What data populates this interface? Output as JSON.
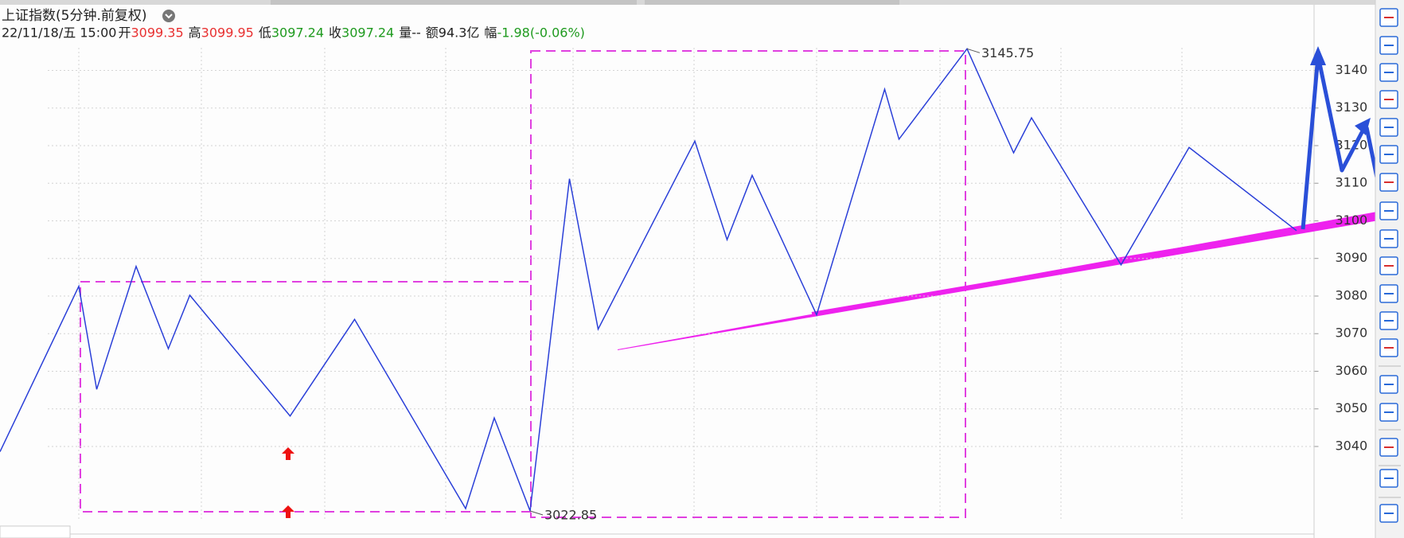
{
  "header": {
    "title": "上证指数(5分钟.前复权)",
    "datetime": "22/11/18/五 15:00",
    "quote": [
      {
        "label": "开",
        "value": "3099.35",
        "color": "#e83030"
      },
      {
        "label": "高",
        "value": "3099.95",
        "color": "#e83030"
      },
      {
        "label": "低",
        "value": "3097.24",
        "color": "#1e9a1e"
      },
      {
        "label": "收",
        "value": "3097.24",
        "color": "#1e9a1e"
      },
      {
        "label": "量",
        "value": "--",
        "color": "#222222"
      },
      {
        "label": "额",
        "value": "94.3亿",
        "color": "#222222"
      },
      {
        "label": "幅",
        "value": "-1.98(-0.06%)",
        "color": "#1e9a1e"
      }
    ]
  },
  "chart_data": {
    "type": "line",
    "color": "#2a3fd8",
    "x": [
      0,
      22,
      27,
      38,
      47,
      53,
      81,
      99,
      130,
      138,
      148,
      159,
      167,
      194,
      203,
      210,
      228,
      247,
      251,
      270,
      283,
      288,
      313,
      332,
      362
    ],
    "values": [
      3038.6,
      3082.6,
      3055.2,
      3087.9,
      3066,
      3080.2,
      3048.1,
      3073.8,
      3023.5,
      3047.6,
      3022.85,
      3111.2,
      3071.2,
      3121.2,
      3095,
      3112.1,
      3075,
      3135,
      3121.7,
      3145.75,
      3118.1,
      3127.4,
      3088.3,
      3119.5,
      3097.4
    ],
    "xlim": [
      0,
      367
    ],
    "ylim": [
      3020,
      3155
    ],
    "yticks": [
      3040,
      3050,
      3060,
      3070,
      3080,
      3090,
      3100,
      3110,
      3120,
      3130,
      3140
    ],
    "grid": true,
    "annotations": [
      {
        "x": 270,
        "value": 3145.75
      },
      {
        "x": 148,
        "value": 3022.85
      }
    ]
  }
}
